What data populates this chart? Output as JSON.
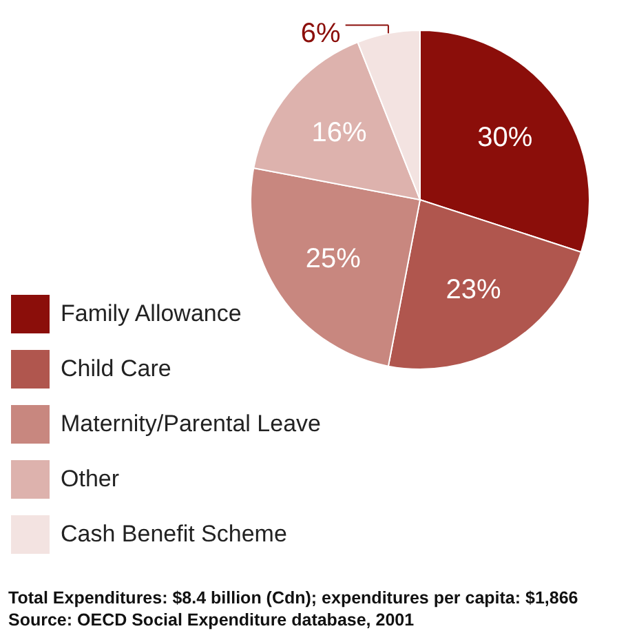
{
  "chart_data": {
    "type": "pie",
    "categories": [
      "Family Allowance",
      "Child Care",
      "Maternity/Parental Leave",
      "Other",
      "Cash Benefit Scheme"
    ],
    "values": [
      30,
      23,
      25,
      16,
      6
    ],
    "colors": [
      "#8b0e0a",
      "#b0564e",
      "#c8877f",
      "#ddb2ad",
      "#f3e3e1"
    ],
    "value_labels": [
      "30%",
      "23%",
      "25%",
      "16%",
      "6%"
    ],
    "legend": "bottom left",
    "annotations": [
      "Total Expenditures: $8.4 billion (Cdn); expenditures per capita: $1,866",
      "Source: OECD Social Expenditure database, 2001"
    ]
  }
}
